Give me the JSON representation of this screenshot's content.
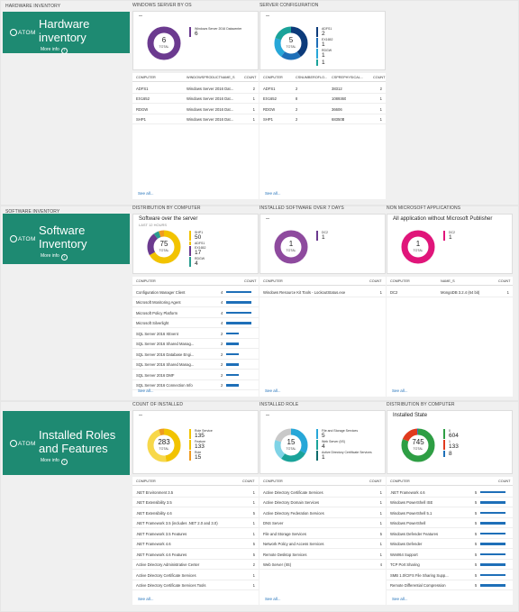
{
  "sections": [
    {
      "header": "HARDWARE INVENTORY",
      "logo": "ATOM",
      "title1": "Hardware",
      "title2": "inventory",
      "more": "More info",
      "cards": [
        {
          "header": "WINDOWS SERVER BY OS",
          "title": "--",
          "subtitle": "",
          "donut_value": "6",
          "donut_label": "TOTAL",
          "legend": [
            {
              "name": "Windows Server 2016 Datacenter",
              "value": "6",
              "color": "#6b3a8f"
            }
          ],
          "segments": [
            {
              "frac": 1,
              "color": "#6b3a8f"
            }
          ],
          "columns": [
            "COMPUTER",
            "WINDOWSPRODUCTNAME_S",
            "COUNT"
          ],
          "col_kind": "text",
          "rows": [
            [
              "ADFS1",
              "Windows Server 2016 Dat...",
              "2"
            ],
            [
              "EX1652",
              "Windows Server 2016 Dat...",
              "1"
            ],
            [
              "RDGW",
              "Windows Server 2016 Dat...",
              "1"
            ],
            [
              "SHP1",
              "Windows Server 2016 Dat...",
              "1"
            ]
          ],
          "see_all": "See all..."
        },
        {
          "header": "SERVER CONFIGURATION",
          "title": "--",
          "subtitle": "",
          "donut_value": "5",
          "donut_label": "TOTAL",
          "legend": [
            {
              "name": "ADFS1",
              "value": "2",
              "color": "#0c3b7a"
            },
            {
              "name": "EX1652",
              "value": "1",
              "color": "#1e6fb8"
            },
            {
              "name": "RDGW",
              "value": "1",
              "color": "#27a7d8"
            },
            {
              "name": "",
              "value": "1",
              "color": "#1aa39a"
            }
          ],
          "segments": [
            {
              "frac": 0.4,
              "color": "#0c3b7a"
            },
            {
              "frac": 0.2,
              "color": "#1e6fb8"
            },
            {
              "frac": 0.2,
              "color": "#27a7d8"
            },
            {
              "frac": 0.2,
              "color": "#1aa39a"
            }
          ],
          "columns": [
            "COMPUTER",
            "CSNUMBEROFLO...",
            "CSPREPHYSICAL...",
            "COUNT"
          ],
          "col_kind": "four",
          "rows": [
            [
              "ADFS1",
              "2",
              "38312",
              "2"
            ],
            [
              "EX1652",
              "8",
              "1089360",
              "1"
            ],
            [
              "RDGW",
              "2",
              "36606",
              "1"
            ],
            [
              "SHP1",
              "2",
              "68350B",
              "1"
            ]
          ],
          "see_all": "See all..."
        }
      ]
    },
    {
      "header": "SOFTWARE INVENTORY",
      "logo": "ATOM",
      "title1": "Software",
      "title2": "Inventory",
      "more": "More info",
      "cards": [
        {
          "header": "DISTRIBUTION BY COMPUTER",
          "title": "Software over the server",
          "subtitle": "LAST 12 HOURS",
          "donut_value": "75",
          "donut_label": "TOTAL",
          "legend": [
            {
              "name": "SHP1",
              "value": "50",
              "color": "#f2c300"
            },
            {
              "name": "ADFS1",
              "value": "",
              "color": "#f2c300"
            },
            {
              "name": "EX1652",
              "value": "17",
              "color": "#6b3a8f"
            },
            {
              "name": "RDGW",
              "value": "4",
              "color": "#2a9d8f"
            }
          ],
          "segments": [
            {
              "frac": 0.667,
              "color": "#f2c300"
            },
            {
              "frac": 0.227,
              "color": "#6b3a8f"
            },
            {
              "frac": 0.053,
              "color": "#2a9d8f"
            },
            {
              "frac": 0.053,
              "color": "#ef9b20"
            }
          ],
          "columns": [
            "COMPUTER",
            "",
            "COUNT"
          ],
          "col_kind": "bar",
          "rows": [
            [
              "Configuration Manager Client",
              "4",
              1
            ],
            [
              "Microsoft Monitoring Agent",
              "4",
              1
            ],
            [
              "Microsoft Policy Platform",
              "4",
              1
            ],
            [
              "Microsoft Silverlight",
              "4",
              1
            ],
            [
              "SQL Server 2016 XEvent",
              "2",
              0.5
            ],
            [
              "SQL Server 2016 Shared Manag...",
              "2",
              0.5
            ],
            [
              "SQL Server 2016 Database Engi...",
              "2",
              0.5
            ],
            [
              "SQL Server 2016 Shared Manag...",
              "2",
              0.5
            ],
            [
              "SQL Server 2016 DMF",
              "2",
              0.5
            ],
            [
              "SQL Server 2016 Connection Info",
              "2",
              0.5
            ]
          ],
          "see_all": "See all..."
        },
        {
          "header": "INSTALLED SOFTWARE OVER 7 DAYS",
          "title": "--",
          "subtitle": "",
          "donut_value": "1",
          "donut_label": "TOTAL",
          "legend": [
            {
              "name": "DC2",
              "value": "1",
              "color": "#6b3a8f"
            }
          ],
          "segments": [
            {
              "frac": 1,
              "color": "#8e4a9e"
            }
          ],
          "columns": [
            "COMPUTER",
            "",
            "COUNT"
          ],
          "col_kind": "wide",
          "rows": [
            [
              "Windows Resource Kit Tools - LockoutStatus.exe",
              "1"
            ]
          ],
          "see_all": "See all..."
        },
        {
          "header": "NON MICROSOFT APPLICATIONS",
          "title": "All application without Microsoft Publisher",
          "subtitle": "",
          "donut_value": "1",
          "donut_label": "TOTAL",
          "legend": [
            {
              "name": "DC2",
              "value": "1",
              "color": "#e0157a"
            }
          ],
          "segments": [
            {
              "frac": 1,
              "color": "#e0157a"
            }
          ],
          "columns": [
            "COMPUTER",
            "NAME_S",
            "COUNT"
          ],
          "col_kind": "text",
          "rows": [
            [
              "DC2",
              "MongoDB 3.2.4 (64 bit)",
              "1"
            ]
          ],
          "see_all": "See all..."
        }
      ]
    },
    {
      "header": "",
      "logo": "ATOM",
      "title1": "Installed Roles",
      "title2": "and Features",
      "more": "More info",
      "cards": [
        {
          "header": "COUNT OF INSTALLED",
          "title": "--",
          "subtitle": "",
          "donut_value": "283",
          "donut_label": "TOTAL",
          "legend": [
            {
              "name": "Role Service",
              "value": "135",
              "color": "#f2c300"
            },
            {
              "name": "Feature",
              "value": "133",
              "color": "#f2c300"
            },
            {
              "name": "Role",
              "value": "15",
              "color": "#ef9b20"
            }
          ],
          "segments": [
            {
              "frac": 0.477,
              "color": "#f2c300"
            },
            {
              "frac": 0.47,
              "color": "#f7d84a"
            },
            {
              "frac": 0.053,
              "color": "#ef9b20"
            }
          ],
          "columns": [
            "COMPUTER",
            "",
            "COUNT"
          ],
          "col_kind": "wide",
          "rows": [
            [
              ".NET Environment 3.5",
              "1"
            ],
            [
              ".NET Extensibility 3.5",
              "1"
            ],
            [
              ".NET Extensibility 4.6",
              "5"
            ],
            [
              ".NET Framework 3.5 (includes .NET 2.0 and 3.0)",
              "1"
            ],
            [
              ".NET Framework 3.5 Features",
              "1"
            ],
            [
              ".NET Framework 4.6",
              "5"
            ],
            [
              ".NET Framework 4.6 Features",
              "5"
            ],
            [
              "Active Directory Administrative Center",
              "2"
            ],
            [
              "Active Directory Certificate Services",
              "1"
            ],
            [
              "Active Directory Certificate Services Tools",
              "1"
            ]
          ],
          "see_all": "See all..."
        },
        {
          "header": "INSTALLED ROLE",
          "title": "--",
          "subtitle": "",
          "donut_value": "15",
          "donut_label": "TOTAL",
          "legend": [
            {
              "name": "File and Storage Services",
              "value": "5",
              "color": "#27a7d8"
            },
            {
              "name": "Web Server (IIS)",
              "value": "4",
              "color": "#1aa39a"
            },
            {
              "name": "Active Directory Certificate Services",
              "value": "1",
              "color": "#0c6b6b"
            }
          ],
          "segments": [
            {
              "frac": 0.333,
              "color": "#27a7d8"
            },
            {
              "frac": 0.267,
              "color": "#1aa39a"
            },
            {
              "frac": 0.2,
              "color": "#7fd3e6"
            },
            {
              "frac": 0.2,
              "color": "#c9c9c9"
            }
          ],
          "columns": [
            "COMPUTER",
            "",
            "COUNT"
          ],
          "col_kind": "wide",
          "rows": [
            [
              "Active Directory Certificate Services",
              "1"
            ],
            [
              "Active Directory Domain Services",
              "1"
            ],
            [
              "Active Directory Federation Services",
              "1"
            ],
            [
              "DNS Server",
              "1"
            ],
            [
              "File and Storage Services",
              "5"
            ],
            [
              "Network Policy and Access Services",
              "1"
            ],
            [
              "Remote Desktop Services",
              "1"
            ],
            [
              "Web Server (IIS)",
              "4"
            ]
          ],
          "see_all": "See all..."
        },
        {
          "header": "DISTRIBUTION BY COMPUTER",
          "title": "Installed State",
          "subtitle": "",
          "donut_value": "745",
          "donut_label": "TOTAL",
          "legend": [
            {
              "name": "0",
              "value": "604",
              "color": "#2e9e44"
            },
            {
              "name": "1",
              "value": "133",
              "color": "#e03a1e"
            },
            {
              "name": "",
              "value": "8",
              "color": "#1e6fb8"
            }
          ],
          "segments": [
            {
              "frac": 0.81,
              "color": "#2e9e44"
            },
            {
              "frac": 0.179,
              "color": "#e03a1e"
            },
            {
              "frac": 0.011,
              "color": "#1e6fb8"
            }
          ],
          "columns": [
            "COMPUTER",
            "",
            "COUNT"
          ],
          "col_kind": "bar",
          "rows": [
            [
              ".NET Framework 4.6",
              "5",
              1
            ],
            [
              "Windows PowerShell ISE",
              "5",
              1
            ],
            [
              "Windows PowerShell 5.1",
              "5",
              1
            ],
            [
              "Windows PowerShell",
              "5",
              1
            ],
            [
              "Windows Defender Features",
              "5",
              1
            ],
            [
              "Windows Defender",
              "5",
              1
            ],
            [
              "WoW64 Support",
              "5",
              1
            ],
            [
              "TCP Port Sharing",
              "5",
              1
            ],
            [
              "SMB 1.0/CIFS File Sharing Supp...",
              "5",
              1
            ],
            [
              "Remote Differential Compression",
              "5",
              1
            ]
          ],
          "see_all": "See all..."
        }
      ]
    }
  ]
}
